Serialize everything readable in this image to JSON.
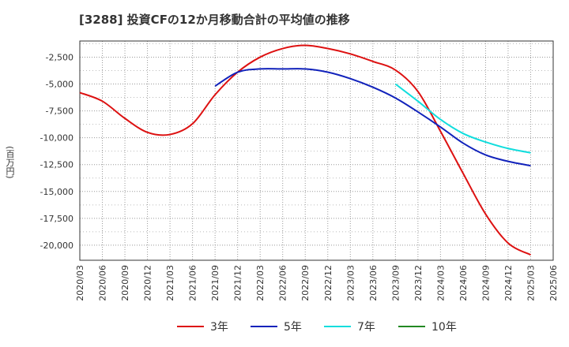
{
  "chart_data": {
    "type": "line",
    "title": "[3288]  投資CFの12か月移動合計の平均値の推移",
    "xlabel": "",
    "ylabel": "(百万円)",
    "x": [
      "2020/03",
      "2020/06",
      "2020/09",
      "2020/12",
      "2021/03",
      "2021/06",
      "2021/09",
      "2021/12",
      "2022/03",
      "2022/06",
      "2022/09",
      "2022/12",
      "2023/03",
      "2023/06",
      "2023/09",
      "2023/12",
      "2024/03",
      "2024/06",
      "2024/09",
      "2024/12",
      "2025/03",
      "2025/06"
    ],
    "ylim": [
      -21400,
      -1000
    ],
    "yticks": [
      -2500,
      -5000,
      -7500,
      -10000,
      -12500,
      -15000,
      -17500,
      -20000
    ],
    "grid": true,
    "legend_position": "bottom",
    "series": [
      {
        "name": "3年",
        "color": "#dd1111",
        "values": [
          -5800,
          -6600,
          -8200,
          -9500,
          -9700,
          -8700,
          -6000,
          -3900,
          -2500,
          -1700,
          -1400,
          -1700,
          -2200,
          -2900,
          -3700,
          -5700,
          -9400,
          -13300,
          -17100,
          -19800,
          -20900,
          null
        ]
      },
      {
        "name": "5年",
        "color": "#1122bb",
        "values": [
          null,
          null,
          null,
          null,
          null,
          null,
          -5200,
          -3900,
          -3600,
          -3600,
          -3600,
          -3900,
          -4500,
          -5300,
          -6300,
          -7600,
          -9000,
          -10500,
          -11600,
          -12200,
          -12600,
          null
        ]
      },
      {
        "name": "7年",
        "color": "#11dddd",
        "values": [
          null,
          null,
          null,
          null,
          null,
          null,
          null,
          null,
          null,
          null,
          null,
          null,
          null,
          null,
          -5000,
          -6600,
          -8300,
          -9600,
          -10400,
          -11000,
          -11400,
          null
        ]
      },
      {
        "name": "10年",
        "color": "#228822",
        "values": [
          null,
          null,
          null,
          null,
          null,
          null,
          null,
          null,
          null,
          null,
          null,
          null,
          null,
          null,
          null,
          null,
          null,
          null,
          null,
          null,
          null,
          null
        ]
      }
    ]
  }
}
